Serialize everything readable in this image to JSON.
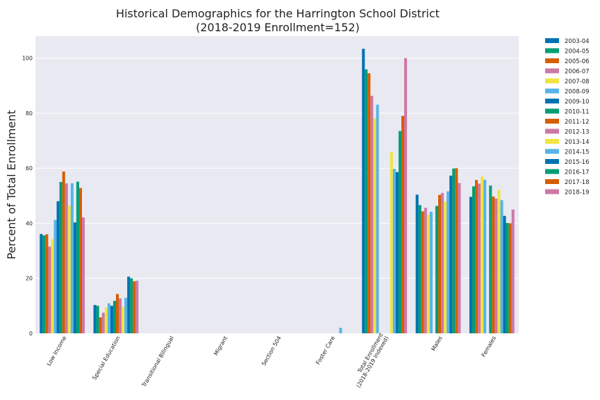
{
  "chart_data": {
    "type": "bar",
    "title": "Historical Demographics for the Harrington School District",
    "subtitle": "(2018-2019 Enrollment=152)",
    "xlabel": "",
    "ylabel": "Percent of Total Enrollment",
    "ylim": [
      0,
      108
    ],
    "yticks": [
      0,
      20,
      40,
      60,
      80,
      100
    ],
    "grid": true,
    "legend_position": "outside-right",
    "background": "#e9e9f1",
    "categories": [
      [
        "Low Income"
      ],
      [
        "Special Education"
      ],
      [
        "Transitional Bilingual"
      ],
      [
        "Migrant"
      ],
      [
        "Section 504"
      ],
      [
        "Foster Care"
      ],
      [
        "Total Enrollment",
        "(2018-2019 Indexed)"
      ],
      [
        "Males"
      ],
      [
        "Females"
      ]
    ],
    "colors": [
      "#0072b2",
      "#009e73",
      "#d55e00",
      "#cc79a7",
      "#f0e442",
      "#56b4e9"
    ],
    "series": [
      {
        "name": "2003-04",
        "values": [
          36.1,
          10.3,
          0,
          0,
          0,
          0,
          103.4,
          50.4,
          49.6
        ]
      },
      {
        "name": "2004-05",
        "values": [
          35.6,
          10.0,
          0,
          0,
          0,
          0,
          95.9,
          46.6,
          53.4
        ]
      },
      {
        "name": "2005-06",
        "values": [
          36.0,
          5.8,
          0,
          0,
          0,
          0,
          94.5,
          44.3,
          55.7
        ]
      },
      {
        "name": "2006-07",
        "values": [
          31.5,
          7.5,
          0,
          0,
          0,
          0,
          86.3,
          45.6,
          54.4
        ]
      },
      {
        "name": "2007-08",
        "values": [
          34.2,
          9.4,
          0,
          0,
          0,
          0,
          78.1,
          43.1,
          56.9
        ]
      },
      {
        "name": "2008-09",
        "values": [
          41.2,
          10.9,
          0,
          0,
          0,
          0,
          83.1,
          44.2,
          55.8
        ]
      },
      {
        "name": "2009-10",
        "values": [
          48.0,
          10.0,
          0,
          0,
          0,
          0,
          0,
          0,
          0
        ]
      },
      {
        "name": "2010-11",
        "values": [
          55.0,
          11.8,
          0,
          0,
          0,
          0,
          0,
          46.3,
          53.7
        ]
      },
      {
        "name": "2011-12",
        "values": [
          58.8,
          14.3,
          0,
          0,
          0,
          0,
          0,
          50.3,
          49.7
        ]
      },
      {
        "name": "2012-13",
        "values": [
          54.5,
          12.7,
          0,
          0,
          0,
          0,
          0,
          51.0,
          49.0
        ]
      },
      {
        "name": "2013-14",
        "values": [
          46.5,
          9.7,
          0,
          0,
          0,
          0,
          65.8,
          47.9,
          52.1
        ]
      },
      {
        "name": "2014-15",
        "values": [
          54.5,
          12.9,
          0,
          0,
          0,
          2.0,
          59.8,
          51.6,
          48.4
        ]
      },
      {
        "name": "2015-16",
        "values": [
          40.3,
          20.6,
          0,
          0,
          0,
          0,
          58.6,
          57.3,
          42.7
        ]
      },
      {
        "name": "2016-17",
        "values": [
          55.1,
          20.0,
          0,
          0,
          0,
          0,
          73.5,
          59.9,
          40.1
        ]
      },
      {
        "name": "2017-18",
        "values": [
          52.8,
          18.9,
          0,
          0,
          0,
          0,
          79.0,
          60.0,
          40.0
        ]
      },
      {
        "name": "2018-19",
        "values": [
          42.1,
          19.1,
          0,
          0,
          0,
          0,
          100.0,
          54.6,
          45.0
        ]
      }
    ]
  }
}
